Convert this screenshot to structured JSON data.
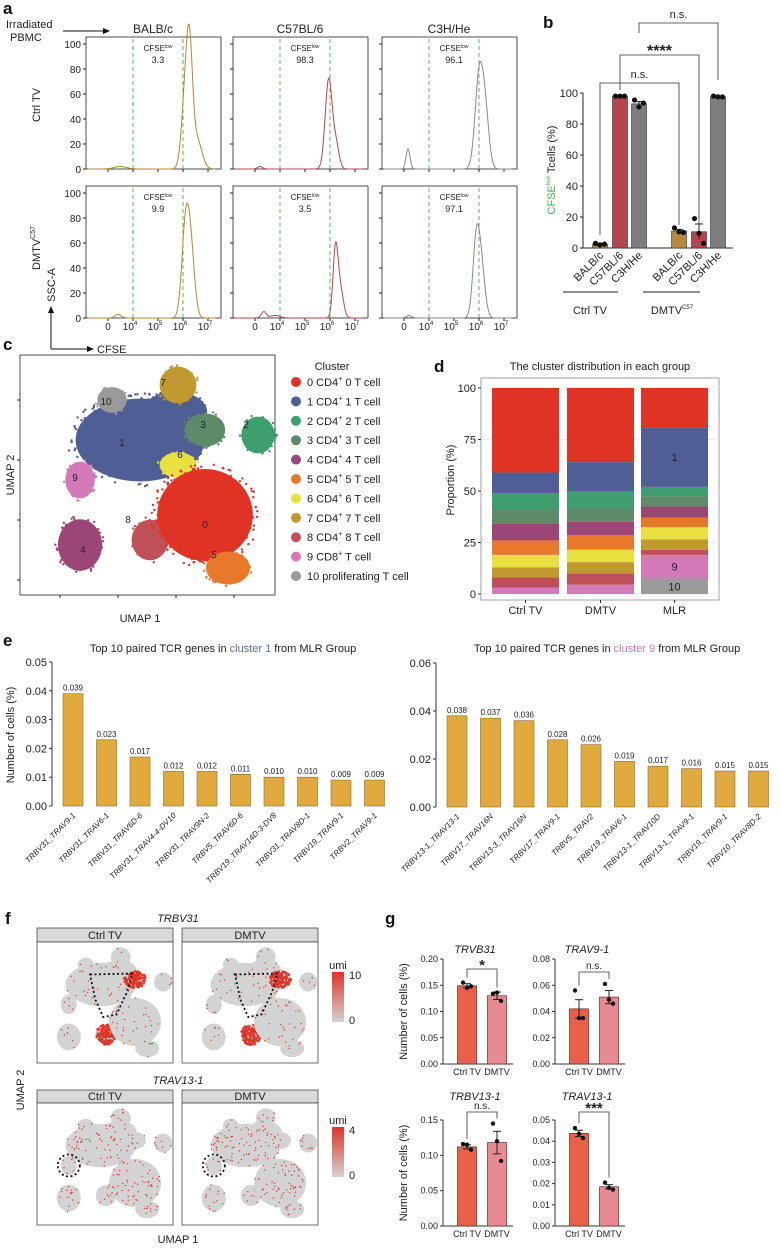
{
  "panel_labels": {
    "a": "a",
    "b": "b",
    "c": "c",
    "d": "d",
    "e": "e",
    "f": "f",
    "g": "g"
  },
  "colors": {
    "gate_green": "#3cb54a",
    "balb": "#b8862e",
    "c57": "#b83a45",
    "c3h": "#8a8a8a",
    "e_bar": "#e0aa3e",
    "highlight_red": "#e03a2a",
    "ctrl_bar": "#e8604a",
    "dmtv_bar": "#e88a92",
    "umi_low": "#d3d3d3",
    "umi_high": "#e03326"
  },
  "chart_data": [
    {
      "id": "a",
      "type": "line",
      "irradiated_label": [
        "Irradiated",
        "PBMC"
      ],
      "columns": [
        {
          "name": "BALB/c",
          "color": "#b8862e"
        },
        {
          "name": "C57BL/6",
          "color": "#c0404c"
        },
        {
          "name": "C3H/He",
          "color": "#8a8a8a"
        }
      ],
      "rows": [
        {
          "label": "Ctrl TV",
          "sup": ""
        },
        {
          "label": "DMTV",
          "sup": "C57"
        }
      ],
      "gate_label": "CFSE",
      "gate_sup": "low",
      "gate_values": [
        [
          "3.3",
          "98.3",
          "96.1"
        ],
        [
          "9.9",
          "3.5",
          "97.1"
        ]
      ],
      "gate_range_log10": [
        4,
        6
      ],
      "y_ticks": [
        "0",
        "20",
        "40",
        "60",
        "80",
        "100"
      ],
      "ylim": [
        0,
        100
      ],
      "x_ticks": [
        {
          "base": "0",
          "exp": ""
        },
        {
          "base": "10",
          "exp": "4"
        },
        {
          "base": "10",
          "exp": "5"
        },
        {
          "base": "10",
          "exp": "6"
        },
        {
          "base": "10",
          "exp": "7"
        }
      ],
      "ylabel": "SSC-A",
      "xlabel": "CFSE",
      "histograms": [
        [
          [
            {
              "center": 3.5,
              "height": 2,
              "width": 0.25
            },
            {
              "center": 6.1,
              "height": 60,
              "width": 0.15
            },
            {
              "center": 6.27,
              "height": 72,
              "width": 0.12
            },
            {
              "center": 6.55,
              "height": 24,
              "width": 0.2
            }
          ],
          [
            {
              "center": 3.2,
              "height": 2,
              "width": 0.1
            },
            {
              "center": 5.95,
              "height": 72,
              "width": 0.14
            },
            {
              "center": 6.25,
              "height": 18,
              "width": 0.12
            }
          ],
          [
            {
              "center": 3.16,
              "height": 16,
              "width": 0.08
            },
            {
              "center": 6.0,
              "height": 72,
              "width": 0.16
            },
            {
              "center": 6.25,
              "height": 42,
              "width": 0.15
            }
          ]
        ],
        [
          [
            {
              "center": 3.4,
              "height": 3,
              "width": 0.12
            },
            {
              "center": 6.1,
              "height": 70,
              "width": 0.15
            },
            {
              "center": 6.32,
              "height": 48,
              "width": 0.15
            }
          ],
          [
            {
              "center": 3.35,
              "height": 5,
              "width": 0.1
            },
            {
              "center": 3.8,
              "height": 2,
              "width": 0.2
            },
            {
              "center": 6.22,
              "height": 55,
              "width": 0.1
            },
            {
              "center": 6.42,
              "height": 22,
              "width": 0.12
            }
          ],
          [
            {
              "center": 3.2,
              "height": 2,
              "width": 0.1
            },
            {
              "center": 5.9,
              "height": 64,
              "width": 0.14
            },
            {
              "center": 6.12,
              "height": 32,
              "width": 0.14
            }
          ]
        ]
      ]
    },
    {
      "id": "b",
      "type": "bar",
      "ylabel_parts": [
        "CFSE",
        "low",
        " Tcells (%)"
      ],
      "ylim": [
        0,
        100
      ],
      "y_ticks": [
        "0",
        "20",
        "40",
        "60",
        "80",
        "100"
      ],
      "groups": [
        {
          "label": "Ctrl TV",
          "sup": ""
        },
        {
          "label": "DMTV",
          "sup": "C57"
        }
      ],
      "categories": [
        {
          "label": "BALB/c",
          "group": 0,
          "color": "#b8862e",
          "bar_color": "#b8893d",
          "value": 2.5,
          "err": 0.5,
          "points": [
            3,
            2,
            2.5
          ]
        },
        {
          "label": "C57BL/6",
          "group": 0,
          "color": "#b83a45",
          "bar_color": "#b5454f",
          "value": 98,
          "err": 0.3,
          "points": [
            98,
            98,
            98
          ]
        },
        {
          "label": "C3H/He",
          "group": 0,
          "color": "#8a8a8a",
          "bar_color": "#7d7d7d",
          "value": 93,
          "err": 1.5,
          "points": [
            95.5,
            91,
            93.5
          ]
        },
        {
          "label": "BALB/c",
          "group": 1,
          "color": "#b8862e",
          "bar_color": "#b8893d",
          "value": 11,
          "err": 1,
          "points": [
            13,
            10.5,
            10
          ]
        },
        {
          "label": "C57BL/6",
          "group": 1,
          "color": "#b83a45",
          "bar_color": "#b5454f",
          "value": 10.5,
          "err": 5,
          "points": [
            19,
            9.5,
            3
          ]
        },
        {
          "label": "C3H/He",
          "group": 1,
          "color": "#8a8a8a",
          "bar_color": "#7d7d7d",
          "value": 97.5,
          "err": 0.4,
          "points": [
            98,
            97.5,
            97.5
          ]
        }
      ],
      "comparisons": [
        {
          "from": 0,
          "to": 3,
          "label": "n.s."
        },
        {
          "from": 1,
          "to": 4,
          "label": "****"
        },
        {
          "from": 2,
          "to": 5,
          "label": "n.s."
        }
      ]
    },
    {
      "id": "c",
      "type": "scatter",
      "xlabel": "UMAP 1",
      "ylabel": "UMAP 2",
      "legend_title": "Cluster",
      "legend": [
        {
          "id": "0",
          "label": "0 CD4",
          "sup": "+",
          "rest": " 0 T cell",
          "color": "#e03326"
        },
        {
          "id": "1",
          "label": "1 CD4",
          "sup": "+",
          "rest": " 1 T cell",
          "color": "#4f5f96"
        },
        {
          "id": "2",
          "label": "2 CD4",
          "sup": "+",
          "rest": " 2 T cell",
          "color": "#3e9e6e"
        },
        {
          "id": "3",
          "label": "3 CD4",
          "sup": "+",
          "rest": " 3 T cell",
          "color": "#5f8a6a"
        },
        {
          "id": "4",
          "label": "4 CD4",
          "sup": "+",
          "rest": " 4 T cell",
          "color": "#9c4677"
        },
        {
          "id": "5",
          "label": "5 CD4",
          "sup": "+",
          "rest": " 5 T cell",
          "color": "#e8792a"
        },
        {
          "id": "6",
          "label": "6 CD4",
          "sup": "+",
          "rest": " 6 T cell",
          "color": "#e8e040"
        },
        {
          "id": "7",
          "label": "7 CD4",
          "sup": "+",
          "rest": " 7 T cell",
          "color": "#c09a30"
        },
        {
          "id": "8",
          "label": "8 CD4",
          "sup": "+",
          "rest": " 8 T cell",
          "color": "#c05058"
        },
        {
          "id": "9",
          "label": "9 CD8",
          "sup": "+",
          "rest": " T cell",
          "color": "#d57ab8"
        },
        {
          "id": "10",
          "label": "10 proliferating T cell",
          "sup": "",
          "rest": "",
          "color": "#9a9a9a"
        }
      ]
    },
    {
      "id": "d",
      "type": "bar",
      "stacked": true,
      "title": "The cluster distribution in each group",
      "ylabel": "Proportion (%)",
      "ylim": [
        0,
        100
      ],
      "y_ticks": [
        "0",
        "25",
        "50",
        "75",
        "100"
      ],
      "categories": [
        "Ctrl TV",
        "DMTV",
        "MLR"
      ],
      "series_order_bottom_up": [
        "10",
        "9",
        "8",
        "7",
        "6",
        "5",
        "4",
        "3",
        "2",
        "1",
        "0"
      ],
      "values": {
        "Ctrl TV": {
          "0": 41,
          "1": 10,
          "2": 8,
          "3": 7,
          "4": 8,
          "5": 7,
          "6": 6,
          "7": 5,
          "8": 5,
          "9": 3,
          "10": 0
        },
        "DMTV": {
          "0": 36,
          "1": 14,
          "2": 8.5,
          "3": 6.5,
          "4": 6.5,
          "5": 7,
          "6": 6,
          "7": 5.5,
          "8": 5.5,
          "9": 4.5,
          "10": 0
        },
        "MLR": {
          "0": 19,
          "1": 29,
          "2": 4.5,
          "3": 5,
          "4": 5.5,
          "5": 4.5,
          "6": 6,
          "7": 5,
          "8": 2.5,
          "9": 11.5,
          "10": 7.5
        }
      },
      "segment_labels": [
        {
          "category": "MLR",
          "cluster": "1",
          "text": "1"
        },
        {
          "category": "MLR",
          "cluster": "9",
          "text": "9"
        },
        {
          "category": "MLR",
          "cluster": "10",
          "text": "10"
        }
      ]
    },
    {
      "id": "e-left",
      "type": "bar",
      "title_parts": [
        "Top 10 paired TCR genes in ",
        "cluster 1",
        " from MLR Group"
      ],
      "title_highlight_color": "#5a6fa0",
      "ylabel": "Number of cells (%)",
      "ylim": [
        0,
        0.05
      ],
      "y_ticks": [
        "0.00",
        "0.01",
        "0.02",
        "0.03",
        "0.04",
        "0.05"
      ],
      "categories": [
        "TRBV31_TRAV9-1",
        "TRBV31_TRAV6-1",
        "TRBV31_TRAV6D-6",
        "TRBV31_TRAV4-4-DV10",
        "TRBV31_TRAV9N-2",
        "TRBV5_TRAV6D-6",
        "TRBV19_TRAV14D-3-DV8",
        "TRBV31_TRAV8D-1",
        "TRBV19_TRAV9-1",
        "TRBV2_TRAV9-1"
      ],
      "values": [
        0.039,
        0.023,
        0.017,
        0.012,
        0.012,
        0.011,
        0.01,
        0.01,
        0.009,
        0.009
      ],
      "data_labels": [
        "0.039",
        "0.023",
        "0.017",
        "0.012",
        "0.012",
        "0.011",
        "0.010",
        "0.010",
        "0.009",
        "0.009"
      ],
      "highlighted_category": 0
    },
    {
      "id": "e-right",
      "type": "bar",
      "title_parts": [
        "Top 10 paired TCR genes in ",
        "cluster 9",
        " from MLR Group"
      ],
      "title_highlight_color": "#d57ab8",
      "ylim": [
        0,
        0.06
      ],
      "y_ticks": [
        "0.00",
        "0.02",
        "0.04",
        "0.06"
      ],
      "categories": [
        "TRBV13-1_TRAV13-1",
        "TRBV17_TRAV16N",
        "TRBV13-3_TRAV16N",
        "TRBV17_TRAV9-1",
        "TRBV5_TRAV2",
        "TRBV19_TRAV6-1",
        "TRBV13-1_TRAV10D",
        "TRBV13-1_TRAV9-1",
        "TRBV19_TRAV9-1",
        "TRBV10_TRAV8D-2"
      ],
      "values": [
        0.038,
        0.037,
        0.036,
        0.028,
        0.026,
        0.019,
        0.017,
        0.016,
        0.015,
        0.015
      ],
      "data_labels": [
        "0.038",
        "0.037",
        "0.036",
        "0.028",
        "0.026",
        "0.019",
        "0.017",
        "0.016",
        "0.015",
        "0.015"
      ],
      "highlighted_category": 0
    },
    {
      "id": "f",
      "type": "scatter",
      "xlabel": "UMAP 1",
      "ylabel": "UMAP 2",
      "facets": [
        "Ctrl TV",
        "DMTV"
      ],
      "genes": [
        {
          "name": "TRBV31",
          "legend_title": "umi",
          "scale_max": "10",
          "scale_min": "0"
        },
        {
          "name": "TRAV13-1",
          "legend_title": "umi",
          "scale_max": "4",
          "scale_min": "0"
        }
      ]
    },
    {
      "id": "g",
      "type": "bar",
      "ylabel": "Number of cells (%)",
      "categories": [
        "Ctrl TV",
        "DMTV"
      ],
      "panels": [
        {
          "title": "TRVB31",
          "ylim": [
            0,
            0.2
          ],
          "y_ticks": [
            "0.00",
            "0.05",
            "0.10",
            "0.15",
            "0.20"
          ],
          "values": [
            0.149,
            0.13
          ],
          "err": [
            0.004,
            0.007
          ],
          "points": [
            [
              0.155,
              0.145,
              0.148
            ],
            [
              0.134,
              0.136,
              0.12
            ]
          ],
          "sig": "*"
        },
        {
          "title": "TRAV9-1",
          "ylim": [
            0,
            0.08
          ],
          "y_ticks": [
            "0.00",
            "0.02",
            "0.04",
            "0.06",
            "0.08"
          ],
          "values": [
            0.042,
            0.051
          ],
          "err": [
            0.007,
            0.005
          ],
          "points": [
            [
              0.056,
              0.035,
              0.035
            ],
            [
              0.061,
              0.049,
              0.046
            ]
          ],
          "sig": "n.s."
        },
        {
          "title": "TRBV13-1",
          "ylim": [
            0,
            0.15
          ],
          "y_ticks": [
            "0.00",
            "0.05",
            "0.10",
            "0.15"
          ],
          "values": [
            0.112,
            0.118
          ],
          "err": [
            0.003,
            0.016
          ],
          "points": [
            [
              0.116,
              0.115,
              0.108
            ],
            [
              0.145,
              0.12,
              0.092
            ]
          ],
          "sig": "n.s."
        },
        {
          "title": "TRAV13-1",
          "ylim": [
            0,
            0.05
          ],
          "y_ticks": [
            "0.00",
            "0.01",
            "0.02",
            "0.03",
            "0.04",
            "0.05"
          ],
          "values": [
            0.0437,
            0.0185
          ],
          "err": [
            0.0015,
            0.001
          ],
          "points": [
            [
              0.0462,
              0.0435,
              0.0415
            ],
            [
              0.0205,
              0.018,
              0.0172
            ]
          ],
          "sig": "***"
        }
      ]
    }
  ]
}
